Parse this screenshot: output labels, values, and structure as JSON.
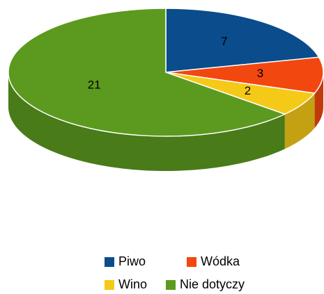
{
  "chart_data": {
    "type": "pie",
    "categories": [
      "Piwo",
      "Wódka",
      "Wino",
      "Nie dotyczy"
    ],
    "values": [
      7,
      3,
      2,
      21
    ],
    "colors": [
      "#0a4c8c",
      "#f2470f",
      "#f5c918",
      "#5b9a1e"
    ]
  }
}
